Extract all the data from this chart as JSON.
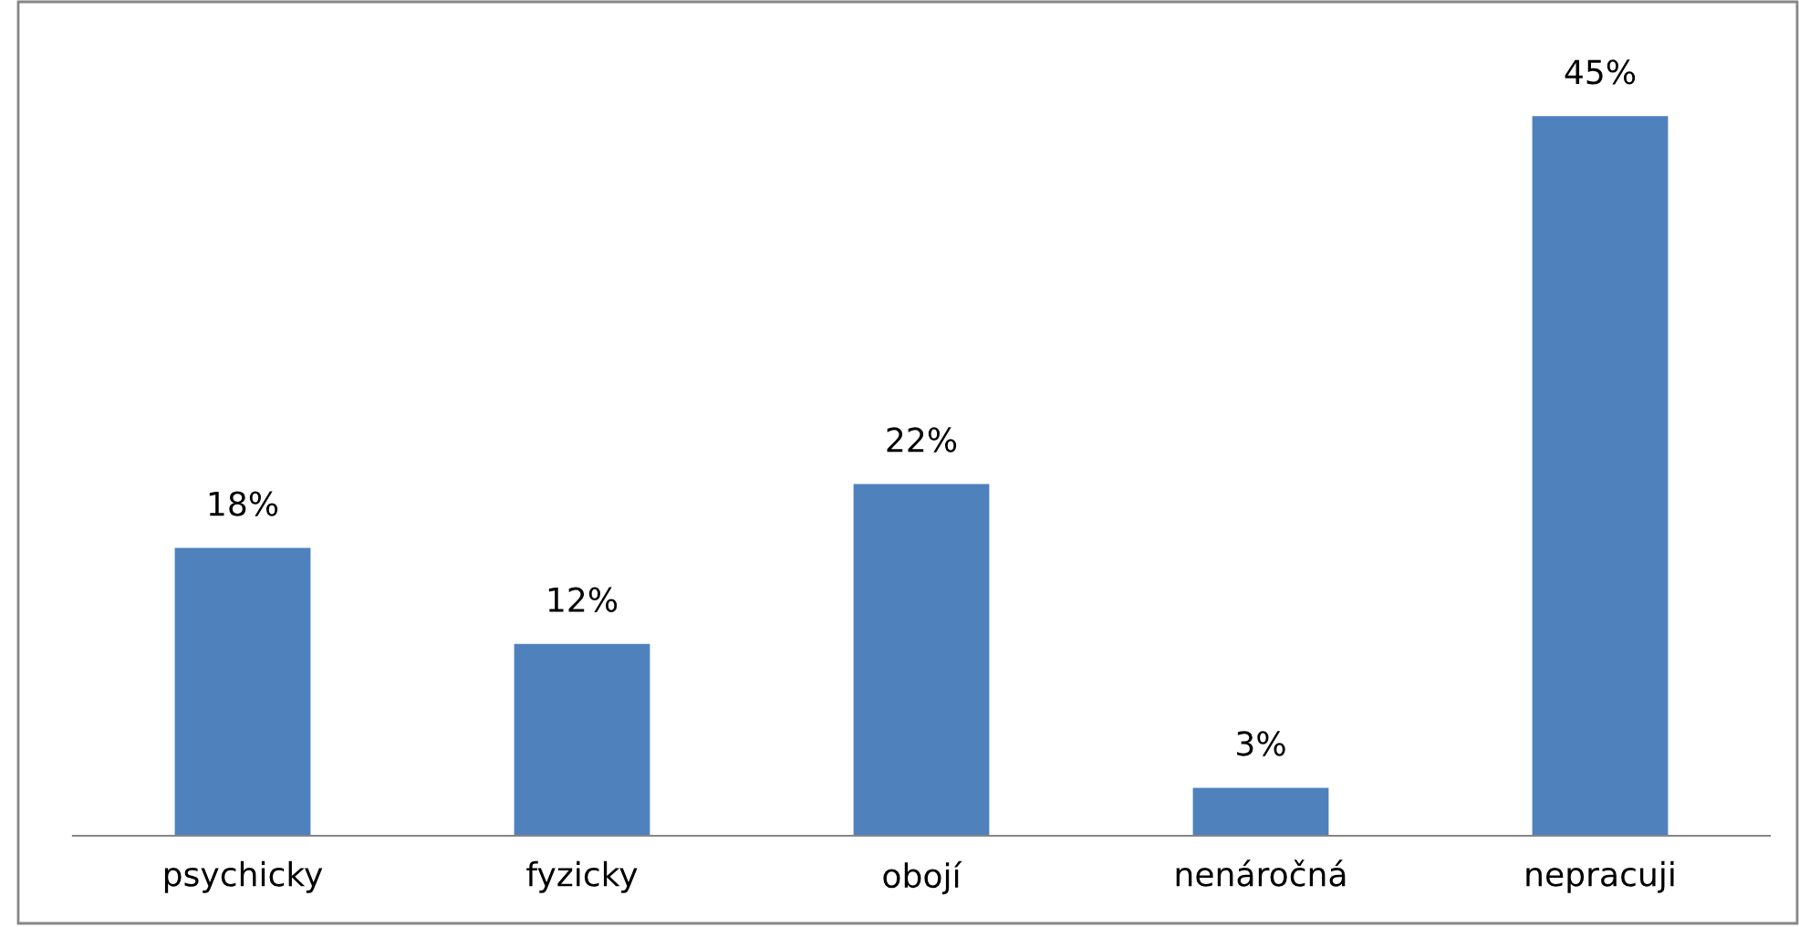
{
  "chart_data": {
    "type": "bar",
    "categories": [
      "psychicky",
      "fyzicky",
      "obojí",
      "nenáročná",
      "nepracuji"
    ],
    "values": [
      18,
      12,
      22,
      3,
      45
    ],
    "value_labels": [
      "18%",
      "12%",
      "22%",
      "3%",
      "45%"
    ],
    "color": "#4f81bd",
    "grid": false,
    "legend": false
  }
}
